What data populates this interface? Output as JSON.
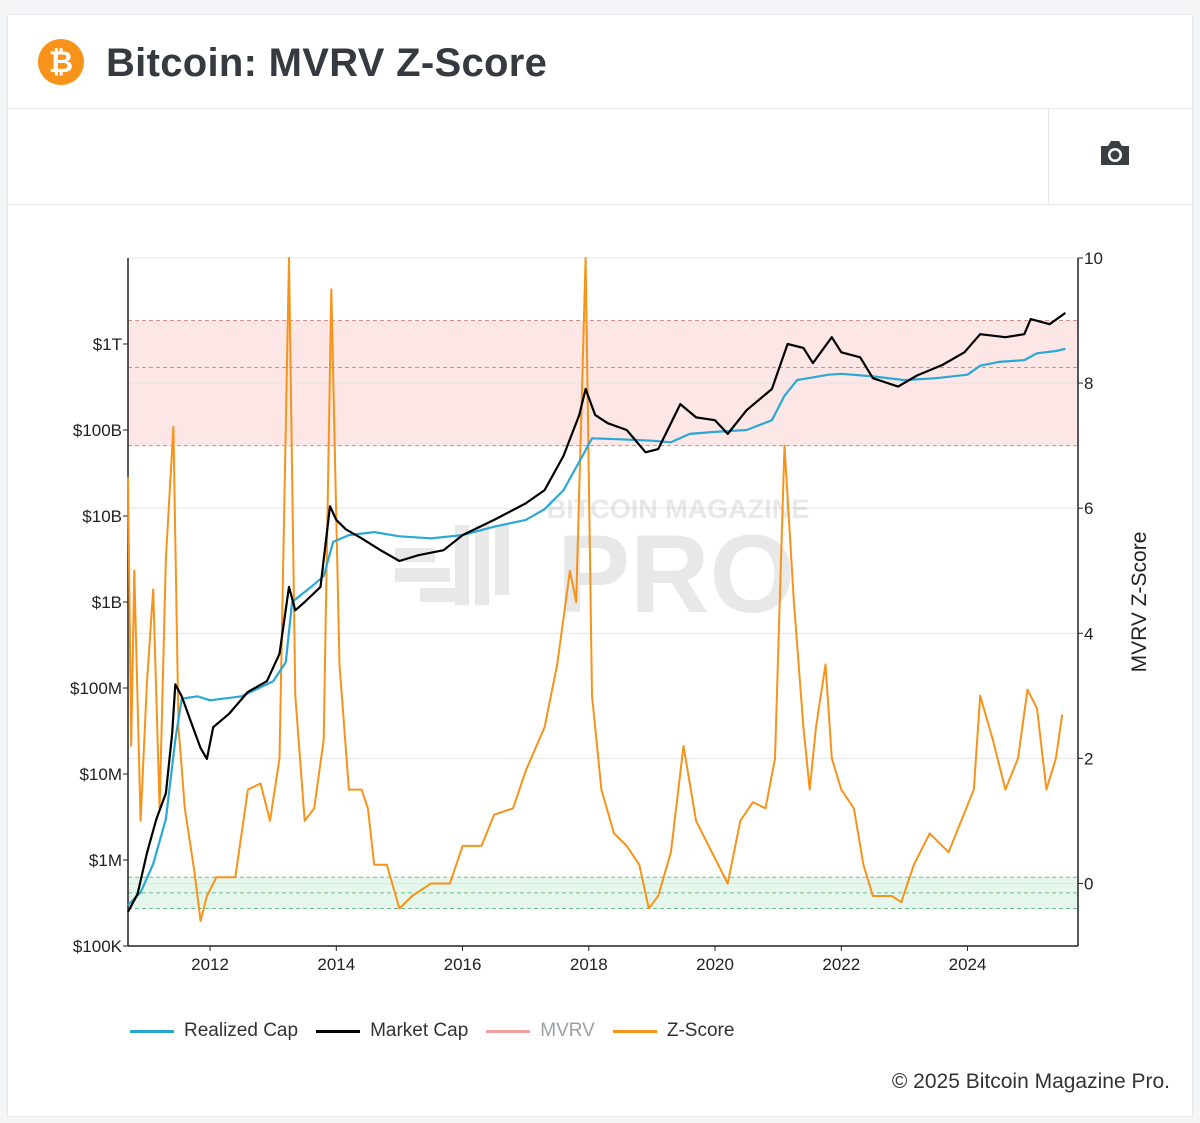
{
  "header": {
    "title": "Bitcoin: MVRV Z-Score",
    "logo_icon": "bitcoin-icon",
    "logo_symbol": "₿"
  },
  "toolbar": {
    "screenshot_icon": "camera-icon"
  },
  "colors": {
    "realized_cap": "#29a8d6",
    "market_cap": "#000000",
    "mvrv": "#f2a0a0",
    "zscore": "#f7931a",
    "upper_band": "#fde6e6",
    "lower_band": "#e5f7ec",
    "brand": "#f7931a"
  },
  "watermark": {
    "line1": "BITCOIN MAGAZINE",
    "line2": "PRO"
  },
  "chart_data": {
    "type": "line",
    "title": "Bitcoin: MVRV Z-Score",
    "left_axis": {
      "scale": "log",
      "range": [
        100000,
        10000000000000
      ],
      "ticks": [
        100000,
        1000000,
        10000000,
        100000000,
        1000000000,
        10000000000,
        100000000000,
        1000000000000
      ],
      "tick_labels": [
        "$100K",
        "$1M",
        "$10M",
        "$100M",
        "$1B",
        "$10B",
        "$100B",
        "$1T"
      ]
    },
    "right_axis": {
      "label": "MVRV Z-Score",
      "range": [
        -1,
        10
      ],
      "ticks": [
        0,
        2,
        4,
        6,
        8,
        10
      ],
      "tick_labels": [
        "0",
        "2",
        "4",
        "6",
        "8",
        "10"
      ]
    },
    "x_axis": {
      "range": [
        2010.7,
        2025.75
      ],
      "ticks": [
        2012,
        2014,
        2016,
        2018,
        2020,
        2022,
        2024
      ],
      "tick_labels": [
        "2012",
        "2014",
        "2016",
        "2018",
        "2020",
        "2022",
        "2024"
      ]
    },
    "bands": [
      {
        "name": "upper",
        "from": 7,
        "to": 9,
        "mid_line": 8.25,
        "scale": "zscore"
      },
      {
        "name": "lower",
        "from": -0.4,
        "to": 0.1,
        "mid_line": -0.15,
        "scale": "zscore"
      }
    ],
    "grid": true,
    "legend_position": "bottom",
    "series": [
      {
        "name": "Realized Cap",
        "axis": "left",
        "points": [
          [
            2010.7,
            300000
          ],
          [
            2010.9,
            420000
          ],
          [
            2011.1,
            900000
          ],
          [
            2011.3,
            3000000
          ],
          [
            2011.45,
            25000000
          ],
          [
            2011.55,
            75000000
          ],
          [
            2011.8,
            80000000
          ],
          [
            2012.0,
            72000000
          ],
          [
            2012.5,
            80000000
          ],
          [
            2013.0,
            120000000
          ],
          [
            2013.2,
            200000000
          ],
          [
            2013.3,
            1000000000
          ],
          [
            2013.6,
            1500000000
          ],
          [
            2013.8,
            2000000000
          ],
          [
            2013.95,
            5000000000
          ],
          [
            2014.2,
            6000000000
          ],
          [
            2014.6,
            6500000000
          ],
          [
            2015.0,
            5800000000
          ],
          [
            2015.5,
            5500000000
          ],
          [
            2016.0,
            6000000000
          ],
          [
            2016.5,
            7500000000
          ],
          [
            2017.0,
            9000000000
          ],
          [
            2017.3,
            12000000000
          ],
          [
            2017.6,
            20000000000
          ],
          [
            2017.9,
            50000000000
          ],
          [
            2018.05,
            80000000000
          ],
          [
            2018.5,
            78000000000
          ],
          [
            2019.0,
            75000000000
          ],
          [
            2019.3,
            72000000000
          ],
          [
            2019.6,
            90000000000
          ],
          [
            2020.0,
            95000000000
          ],
          [
            2020.5,
            100000000000
          ],
          [
            2020.9,
            130000000000
          ],
          [
            2021.1,
            250000000000
          ],
          [
            2021.3,
            380000000000
          ],
          [
            2021.8,
            440000000000
          ],
          [
            2022.0,
            450000000000
          ],
          [
            2022.5,
            420000000000
          ],
          [
            2023.0,
            380000000000
          ],
          [
            2023.5,
            400000000000
          ],
          [
            2024.0,
            440000000000
          ],
          [
            2024.2,
            560000000000
          ],
          [
            2024.5,
            620000000000
          ],
          [
            2024.9,
            650000000000
          ],
          [
            2025.1,
            780000000000
          ],
          [
            2025.4,
            830000000000
          ],
          [
            2025.55,
            880000000000
          ]
        ]
      },
      {
        "name": "Market Cap",
        "axis": "left",
        "points": [
          [
            2010.7,
            250000
          ],
          [
            2010.85,
            400000
          ],
          [
            2011.0,
            1200000
          ],
          [
            2011.15,
            3000000
          ],
          [
            2011.3,
            6000000
          ],
          [
            2011.4,
            30000000
          ],
          [
            2011.45,
            110000000
          ],
          [
            2011.55,
            80000000
          ],
          [
            2011.7,
            40000000
          ],
          [
            2011.85,
            20000000
          ],
          [
            2011.95,
            15000000
          ],
          [
            2012.05,
            35000000
          ],
          [
            2012.3,
            50000000
          ],
          [
            2012.6,
            90000000
          ],
          [
            2012.9,
            120000000
          ],
          [
            2013.1,
            250000000
          ],
          [
            2013.25,
            1500000000
          ],
          [
            2013.35,
            800000000
          ],
          [
            2013.5,
            1000000000
          ],
          [
            2013.75,
            1500000000
          ],
          [
            2013.9,
            13000000000
          ],
          [
            2014.0,
            9000000000
          ],
          [
            2014.15,
            7000000000
          ],
          [
            2014.4,
            5500000000
          ],
          [
            2014.7,
            4000000000
          ],
          [
            2015.0,
            3000000000
          ],
          [
            2015.3,
            3500000000
          ],
          [
            2015.7,
            4000000000
          ],
          [
            2016.0,
            6000000000
          ],
          [
            2016.5,
            9000000000
          ],
          [
            2017.0,
            14000000000
          ],
          [
            2017.3,
            20000000000
          ],
          [
            2017.6,
            50000000000
          ],
          [
            2017.85,
            150000000000
          ],
          [
            2017.95,
            300000000000
          ],
          [
            2018.1,
            150000000000
          ],
          [
            2018.3,
            120000000000
          ],
          [
            2018.6,
            100000000000
          ],
          [
            2018.9,
            55000000000
          ],
          [
            2019.1,
            60000000000
          ],
          [
            2019.45,
            200000000000
          ],
          [
            2019.7,
            140000000000
          ],
          [
            2020.0,
            130000000000
          ],
          [
            2020.2,
            90000000000
          ],
          [
            2020.5,
            170000000000
          ],
          [
            2020.9,
            300000000000
          ],
          [
            2021.15,
            1000000000000
          ],
          [
            2021.4,
            900000000000
          ],
          [
            2021.55,
            600000000000
          ],
          [
            2021.85,
            1200000000000
          ],
          [
            2022.0,
            800000000000
          ],
          [
            2022.3,
            700000000000
          ],
          [
            2022.5,
            400000000000
          ],
          [
            2022.9,
            320000000000
          ],
          [
            2023.2,
            430000000000
          ],
          [
            2023.6,
            570000000000
          ],
          [
            2023.95,
            800000000000
          ],
          [
            2024.2,
            1300000000000
          ],
          [
            2024.6,
            1200000000000
          ],
          [
            2024.9,
            1300000000000
          ],
          [
            2025.0,
            1950000000000
          ],
          [
            2025.3,
            1700000000000
          ],
          [
            2025.55,
            2300000000000
          ]
        ]
      },
      {
        "name": "MVRV",
        "axis": "right",
        "hidden": true,
        "points": []
      },
      {
        "name": "Z-Score",
        "axis": "right",
        "points": [
          [
            2010.7,
            6.5
          ],
          [
            2010.75,
            2.2
          ],
          [
            2010.8,
            5.0
          ],
          [
            2010.9,
            1.0
          ],
          [
            2011.0,
            3.2
          ],
          [
            2011.1,
            4.7
          ],
          [
            2011.2,
            1.2
          ],
          [
            2011.3,
            5.2
          ],
          [
            2011.42,
            7.3
          ],
          [
            2011.5,
            2.5
          ],
          [
            2011.6,
            1.2
          ],
          [
            2011.75,
            0.2
          ],
          [
            2011.85,
            -0.6
          ],
          [
            2011.95,
            -0.2
          ],
          [
            2012.1,
            0.1
          ],
          [
            2012.4,
            0.1
          ],
          [
            2012.6,
            1.5
          ],
          [
            2012.8,
            1.6
          ],
          [
            2012.95,
            1.0
          ],
          [
            2013.1,
            2.0
          ],
          [
            2013.25,
            10.0
          ],
          [
            2013.35,
            3.0
          ],
          [
            2013.5,
            1.0
          ],
          [
            2013.65,
            1.2
          ],
          [
            2013.8,
            2.3
          ],
          [
            2013.92,
            9.5
          ],
          [
            2014.05,
            3.5
          ],
          [
            2014.2,
            1.5
          ],
          [
            2014.4,
            1.5
          ],
          [
            2014.5,
            1.2
          ],
          [
            2014.6,
            0.3
          ],
          [
            2014.8,
            0.3
          ],
          [
            2015.0,
            -0.4
          ],
          [
            2015.2,
            -0.2
          ],
          [
            2015.5,
            0.0
          ],
          [
            2015.8,
            0.0
          ],
          [
            2016.0,
            0.6
          ],
          [
            2016.3,
            0.6
          ],
          [
            2016.5,
            1.1
          ],
          [
            2016.8,
            1.2
          ],
          [
            2017.0,
            1.8
          ],
          [
            2017.3,
            2.5
          ],
          [
            2017.5,
            3.5
          ],
          [
            2017.7,
            5.0
          ],
          [
            2017.8,
            4.5
          ],
          [
            2017.95,
            10.0
          ],
          [
            2018.05,
            3.0
          ],
          [
            2018.2,
            1.5
          ],
          [
            2018.4,
            0.8
          ],
          [
            2018.6,
            0.6
          ],
          [
            2018.8,
            0.3
          ],
          [
            2018.95,
            -0.4
          ],
          [
            2019.1,
            -0.2
          ],
          [
            2019.3,
            0.5
          ],
          [
            2019.5,
            2.2
          ],
          [
            2019.7,
            1.0
          ],
          [
            2019.9,
            0.6
          ],
          [
            2020.2,
            0.0
          ],
          [
            2020.4,
            1.0
          ],
          [
            2020.6,
            1.3
          ],
          [
            2020.8,
            1.2
          ],
          [
            2020.95,
            2.0
          ],
          [
            2021.1,
            7.0
          ],
          [
            2021.25,
            4.5
          ],
          [
            2021.4,
            2.5
          ],
          [
            2021.5,
            1.5
          ],
          [
            2021.6,
            2.5
          ],
          [
            2021.75,
            3.5
          ],
          [
            2021.85,
            2.0
          ],
          [
            2022.0,
            1.5
          ],
          [
            2022.2,
            1.2
          ],
          [
            2022.35,
            0.3
          ],
          [
            2022.5,
            -0.2
          ],
          [
            2022.8,
            -0.2
          ],
          [
            2022.95,
            -0.3
          ],
          [
            2023.15,
            0.3
          ],
          [
            2023.4,
            0.8
          ],
          [
            2023.7,
            0.5
          ],
          [
            2023.9,
            1.0
          ],
          [
            2024.1,
            1.5
          ],
          [
            2024.2,
            3.0
          ],
          [
            2024.4,
            2.3
          ],
          [
            2024.6,
            1.5
          ],
          [
            2024.8,
            2.0
          ],
          [
            2024.95,
            3.1
          ],
          [
            2025.1,
            2.8
          ],
          [
            2025.25,
            1.5
          ],
          [
            2025.4,
            2.0
          ],
          [
            2025.5,
            2.7
          ]
        ]
      }
    ]
  },
  "legend": {
    "items": [
      {
        "label": "Realized Cap",
        "color": "#29a8d6"
      },
      {
        "label": "Market Cap",
        "color": "#000000"
      },
      {
        "label": "MVRV",
        "color": "#f2a0a0"
      },
      {
        "label": "Z-Score",
        "color": "#f7931a"
      }
    ]
  },
  "footer": {
    "copyright": "© 2025 Bitcoin Magazine Pro."
  }
}
